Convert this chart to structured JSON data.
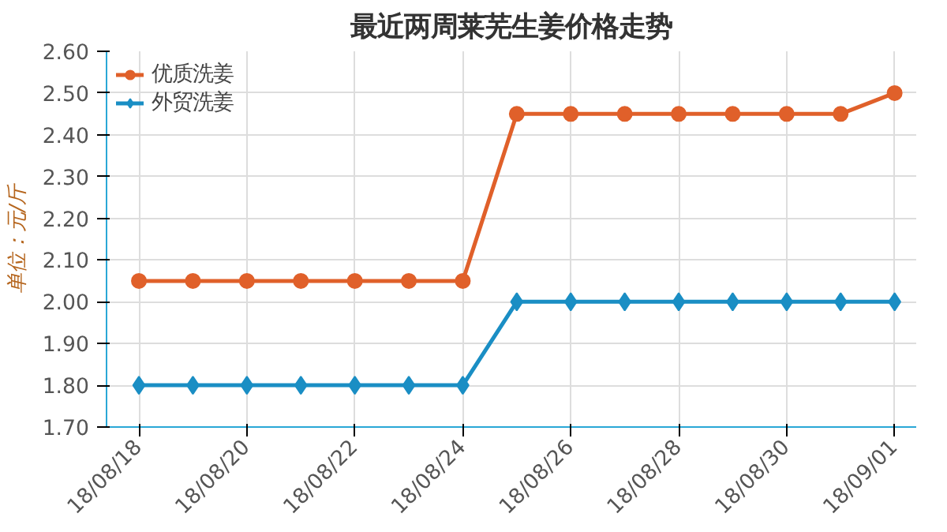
{
  "chart_data": {
    "type": "line",
    "title": "最近两周莱芜生姜价格走势",
    "ylabel": "单位：元/斤",
    "categories": [
      "18/08/18",
      null,
      "18/08/20",
      null,
      "18/08/22",
      null,
      "18/08/24",
      null,
      "18/08/26",
      null,
      "18/08/28",
      null,
      "18/08/30",
      null,
      "18/09/01"
    ],
    "series": [
      {
        "name": "优质洗姜",
        "color": "#e0602a",
        "marker": "circle",
        "values": [
          2.05,
          2.05,
          2.05,
          2.05,
          2.05,
          2.05,
          2.05,
          2.45,
          2.45,
          2.45,
          2.45,
          2.45,
          2.45,
          2.45,
          2.5
        ]
      },
      {
        "name": "外贸洗姜",
        "color": "#1a8ec4",
        "marker": "diamond",
        "values": [
          1.8,
          1.8,
          1.8,
          1.8,
          1.8,
          1.8,
          1.8,
          2.0,
          2.0,
          2.0,
          2.0,
          2.0,
          2.0,
          2.0,
          2.0
        ]
      }
    ],
    "ylim": [
      1.7,
      2.6
    ],
    "yticks": [
      {
        "value": 1.7,
        "label": "1.70"
      },
      {
        "value": 1.8,
        "label": "1.80"
      },
      {
        "value": 1.9,
        "label": "1.90"
      },
      {
        "value": 2.0,
        "label": "2.00"
      },
      {
        "value": 2.1,
        "label": "2.10"
      },
      {
        "value": 2.2,
        "label": "2.20"
      },
      {
        "value": 2.3,
        "label": "2.30"
      },
      {
        "value": 2.4,
        "label": "2.40"
      },
      {
        "value": 2.5,
        "label": "2.50"
      },
      {
        "value": 2.6,
        "label": "2.60"
      }
    ],
    "grid": true,
    "legend": "top left",
    "line_style": "solid"
  }
}
